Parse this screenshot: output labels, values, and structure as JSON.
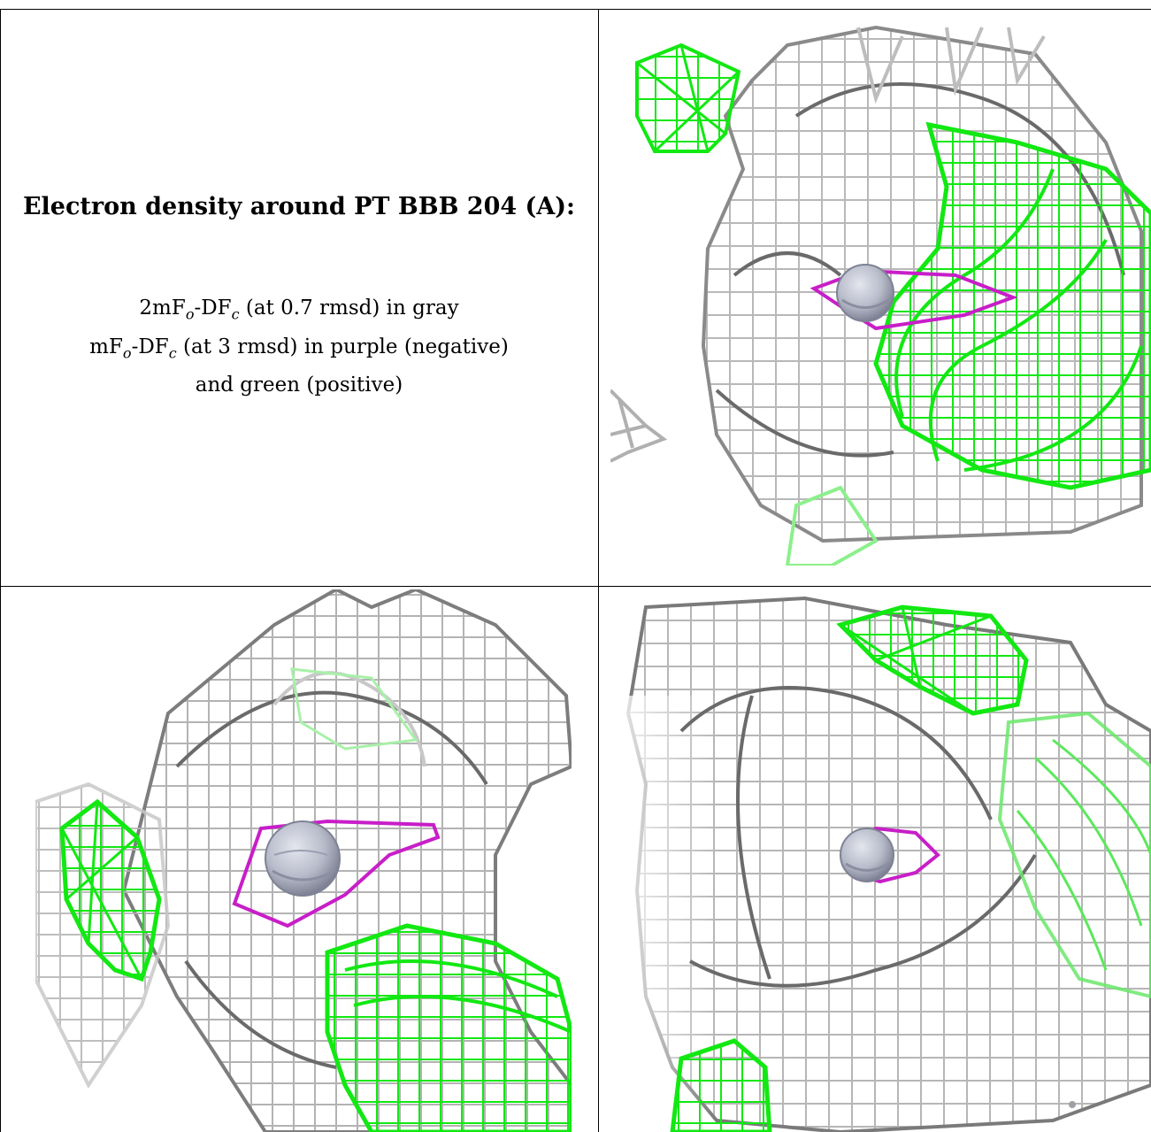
{
  "caption": {
    "title": "Electron density around PT BBB 204 (A):",
    "line1_prefix": "2mF",
    "line1_sub1": "o",
    "line1_mid": "-DF",
    "line1_sub2": "c",
    "line1_suffix": " (at 0.7 rmsd) in gray",
    "line2_prefix": "mF",
    "line2_sub1": "o",
    "line2_mid": "-DF",
    "line2_sub2": "c",
    "line2_suffix": " (at 3 rmsd) in purple (negative)",
    "line3": "and green (positive)"
  },
  "colors": {
    "gray_mesh": "#b8b8b8",
    "dark_mesh": "#5a5a5a",
    "green_mesh": "#12e812",
    "purple_mesh": "#c81ec8",
    "atom": "#b8bcca"
  },
  "panels": [
    {
      "name": "view-top-right"
    },
    {
      "name": "view-bottom-left"
    },
    {
      "name": "view-bottom-right"
    }
  ]
}
